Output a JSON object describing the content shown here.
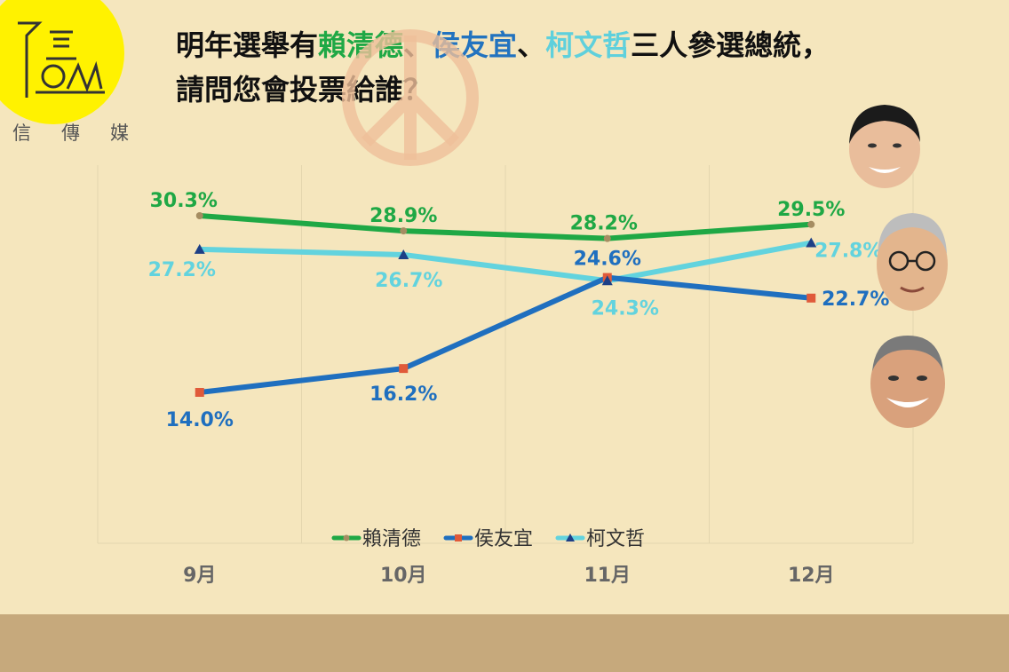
{
  "logo": {
    "text": "信傳媒"
  },
  "title": {
    "part1": "明年選舉有",
    "name1": "賴清德",
    "sep1": "、",
    "name2": "侯友宜",
    "sep2": "、",
    "name3": "柯文哲",
    "part2": "三人參選總統，",
    "line2": "請問您會投票給誰？"
  },
  "colors": {
    "green": "#1fa845",
    "blue": "#1f6fbf",
    "cyan": "#62d3de",
    "background": "#f5e6bd",
    "band": "#c6a97c"
  },
  "chart_data": {
    "type": "line",
    "categories": [
      "9月",
      "10月",
      "11月",
      "12月"
    ],
    "ylim": [
      0,
      35
    ],
    "grid": "vertical lines",
    "legend_position": "bottom",
    "series": [
      {
        "name": "賴清德",
        "values": [
          30.3,
          28.9,
          28.2,
          29.5
        ],
        "labels": [
          "30.3%",
          "28.9%",
          "28.2%",
          "29.5%"
        ],
        "color": "#1fa845",
        "marker": "circle"
      },
      {
        "name": "侯友宜",
        "values": [
          14.0,
          16.2,
          24.6,
          22.7
        ],
        "labels": [
          "14.0%",
          "16.2%",
          "24.6%",
          "22.7%"
        ],
        "color": "#1f6fbf",
        "marker": "square"
      },
      {
        "name": "柯文哲",
        "values": [
          27.2,
          26.7,
          24.3,
          27.8
        ],
        "labels": [
          "27.2%",
          "26.7%",
          "24.3%",
          "27.8%"
        ],
        "color": "#62d3de",
        "marker": "triangle"
      }
    ]
  }
}
